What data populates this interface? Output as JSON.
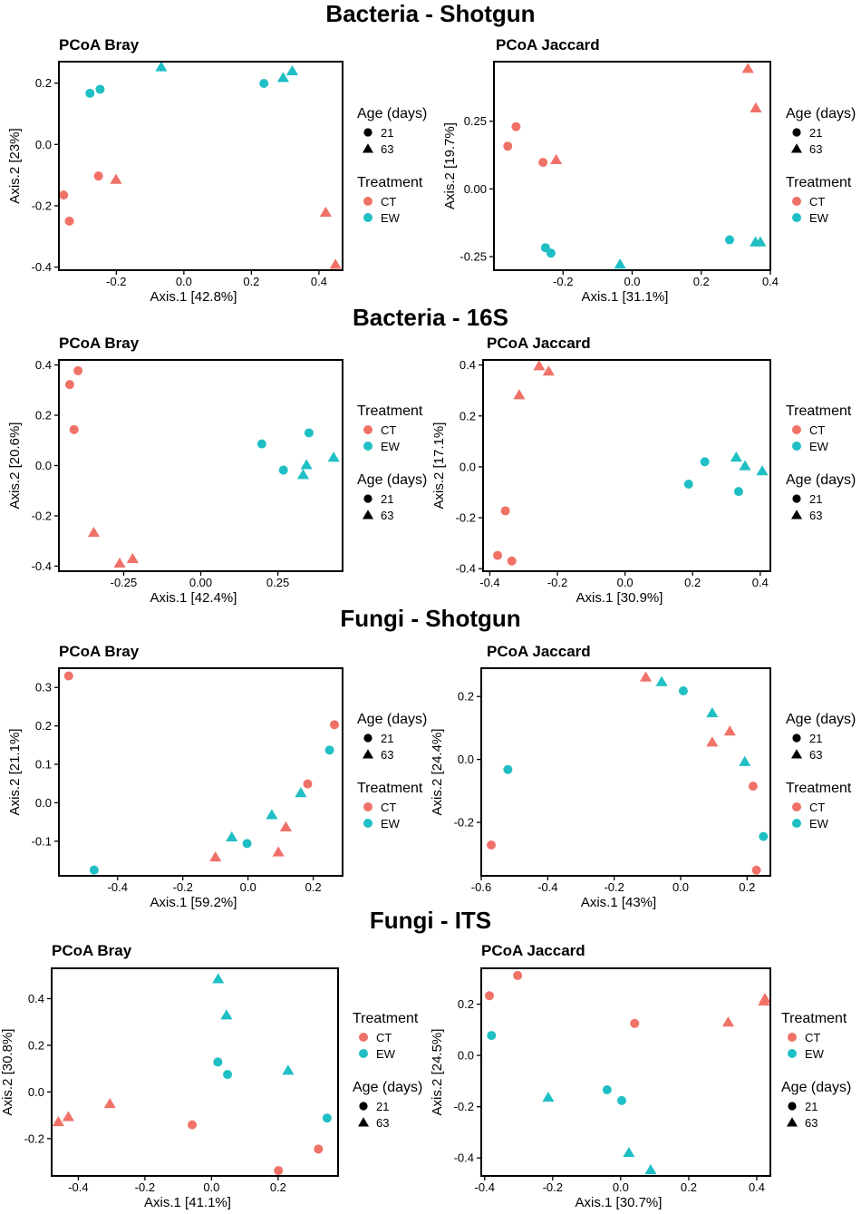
{
  "colors": {
    "CT": "#F07167",
    "EW": "#1FBFC4",
    "axis": "#000000"
  },
  "sections": [
    {
      "title": "Bacteria - Shotgun"
    },
    {
      "title": "Bacteria - 16S"
    },
    {
      "title": "Fungi - Shotgun"
    },
    {
      "title": "Fungi - ITS"
    }
  ],
  "legend_text": {
    "age_title": "Age (days)",
    "age_levels": [
      "21",
      "63"
    ],
    "treatment_title": "Treatment",
    "treatment_levels": [
      "CT",
      "EW"
    ]
  },
  "chart_data": [
    {
      "type": "scatter",
      "section": "Bacteria - Shotgun",
      "title": "PCoA Bray",
      "xlabel": "Axis.1   [42.8%]",
      "ylabel": "Axis.2   [23%]",
      "xlim": [
        -0.37,
        0.47
      ],
      "ylim": [
        -0.41,
        0.27
      ],
      "xticks": [
        -0.2,
        0.0,
        0.2,
        0.4
      ],
      "xtick_labels": [
        "-0.2",
        "0.0",
        "0.2",
        "0.4"
      ],
      "yticks": [
        -0.4,
        -0.2,
        0.0,
        0.2
      ],
      "ytick_labels": [
        "-0.4",
        "-0.2",
        "0.0",
        "0.2"
      ],
      "legend_order": [
        "age",
        "treatment"
      ],
      "points": [
        {
          "x": -0.067,
          "y": 0.253,
          "treatment": "EW",
          "age": "63"
        },
        {
          "x": -0.248,
          "y": 0.18,
          "treatment": "EW",
          "age": "21"
        },
        {
          "x": -0.278,
          "y": 0.167,
          "treatment": "EW",
          "age": "21"
        },
        {
          "x": 0.237,
          "y": 0.199,
          "treatment": "EW",
          "age": "21"
        },
        {
          "x": 0.294,
          "y": 0.218,
          "treatment": "EW",
          "age": "63"
        },
        {
          "x": 0.321,
          "y": 0.24,
          "treatment": "EW",
          "age": "63"
        },
        {
          "x": -0.253,
          "y": -0.103,
          "treatment": "CT",
          "age": "21"
        },
        {
          "x": -0.201,
          "y": -0.114,
          "treatment": "CT",
          "age": "63"
        },
        {
          "x": -0.356,
          "y": -0.165,
          "treatment": "CT",
          "age": "21"
        },
        {
          "x": -0.339,
          "y": -0.25,
          "treatment": "CT",
          "age": "21"
        },
        {
          "x": 0.42,
          "y": -0.221,
          "treatment": "CT",
          "age": "63"
        },
        {
          "x": 0.449,
          "y": -0.391,
          "treatment": "CT",
          "age": "63"
        }
      ]
    },
    {
      "type": "scatter",
      "section": "Bacteria - Shotgun",
      "title": "PCoA Jaccard",
      "xlabel": "Axis.1   [31.1%]",
      "ylabel": "Axis.2   [19.7%]",
      "xlim": [
        -0.4,
        0.4
      ],
      "ylim": [
        -0.3,
        0.47
      ],
      "xticks": [
        -0.2,
        0.0,
        0.2,
        0.4
      ],
      "xtick_labels": [
        "-0.2",
        "0.0",
        "0.2",
        "0.4"
      ],
      "yticks": [
        -0.25,
        0.0,
        0.25
      ],
      "ytick_labels": [
        "-0.25",
        "0.00",
        "0.25"
      ],
      "legend_order": [
        "age",
        "treatment"
      ],
      "points": [
        {
          "x": 0.335,
          "y": 0.445,
          "treatment": "CT",
          "age": "63"
        },
        {
          "x": 0.358,
          "y": 0.299,
          "treatment": "CT",
          "age": "63"
        },
        {
          "x": -0.336,
          "y": 0.23,
          "treatment": "CT",
          "age": "21"
        },
        {
          "x": -0.36,
          "y": 0.158,
          "treatment": "CT",
          "age": "21"
        },
        {
          "x": -0.258,
          "y": 0.098,
          "treatment": "CT",
          "age": "21"
        },
        {
          "x": -0.22,
          "y": 0.108,
          "treatment": "CT",
          "age": "63"
        },
        {
          "x": -0.251,
          "y": -0.217,
          "treatment": "EW",
          "age": "21"
        },
        {
          "x": -0.235,
          "y": -0.237,
          "treatment": "EW",
          "age": "21"
        },
        {
          "x": -0.035,
          "y": -0.278,
          "treatment": "EW",
          "age": "63"
        },
        {
          "x": 0.282,
          "y": -0.188,
          "treatment": "EW",
          "age": "21"
        },
        {
          "x": 0.357,
          "y": -0.196,
          "treatment": "EW",
          "age": "63"
        },
        {
          "x": 0.371,
          "y": -0.196,
          "treatment": "EW",
          "age": "63"
        }
      ]
    },
    {
      "type": "scatter",
      "section": "Bacteria - 16S",
      "title": "PCoA Bray",
      "xlabel": "Axis.1   [42.4%]",
      "ylabel": "Axis.2   [20.6%]",
      "xlim": [
        -0.46,
        0.46
      ],
      "ylim": [
        -0.42,
        0.42
      ],
      "xticks": [
        -0.25,
        0.0,
        0.25
      ],
      "xtick_labels": [
        "-0.25",
        "0.00",
        "0.25"
      ],
      "yticks": [
        -0.4,
        -0.2,
        0.0,
        0.2,
        0.4
      ],
      "ytick_labels": [
        "-0.4",
        "-0.2",
        "0.0",
        "0.2",
        "0.4"
      ],
      "legend_order": [
        "treatment",
        "age"
      ],
      "points": [
        {
          "x": -0.398,
          "y": 0.377,
          "treatment": "CT",
          "age": "21"
        },
        {
          "x": -0.425,
          "y": 0.322,
          "treatment": "CT",
          "age": "21"
        },
        {
          "x": -0.411,
          "y": 0.143,
          "treatment": "CT",
          "age": "21"
        },
        {
          "x": -0.347,
          "y": -0.266,
          "treatment": "CT",
          "age": "63"
        },
        {
          "x": -0.263,
          "y": -0.388,
          "treatment": "CT",
          "age": "63"
        },
        {
          "x": -0.221,
          "y": -0.37,
          "treatment": "CT",
          "age": "63"
        },
        {
          "x": 0.198,
          "y": 0.086,
          "treatment": "EW",
          "age": "21"
        },
        {
          "x": 0.268,
          "y": -0.018,
          "treatment": "EW",
          "age": "21"
        },
        {
          "x": 0.351,
          "y": 0.13,
          "treatment": "EW",
          "age": "21"
        },
        {
          "x": 0.343,
          "y": 0.003,
          "treatment": "EW",
          "age": "63"
        },
        {
          "x": 0.332,
          "y": -0.036,
          "treatment": "EW",
          "age": "63"
        },
        {
          "x": 0.431,
          "y": 0.033,
          "treatment": "EW",
          "age": "63"
        }
      ]
    },
    {
      "type": "scatter",
      "section": "Bacteria - 16S",
      "title": "PCoA Jaccard",
      "xlabel": "Axis.1   [30.9%]",
      "ylabel": "Axis.2   [17.1%]",
      "xlim": [
        -0.42,
        0.43
      ],
      "ylim": [
        -0.41,
        0.42
      ],
      "xticks": [
        -0.4,
        -0.2,
        0.0,
        0.2,
        0.4
      ],
      "xtick_labels": [
        "-0.4",
        "-0.2",
        "0.0",
        "0.2",
        "0.4"
      ],
      "yticks": [
        -0.4,
        -0.2,
        0.0,
        0.2,
        0.4
      ],
      "ytick_labels": [
        "-0.4",
        "-0.2",
        "0.0",
        "0.2",
        "0.4"
      ],
      "legend_order": [
        "treatment",
        "age"
      ],
      "points": [
        {
          "x": -0.254,
          "y": 0.397,
          "treatment": "CT",
          "age": "63"
        },
        {
          "x": -0.226,
          "y": 0.376,
          "treatment": "CT",
          "age": "63"
        },
        {
          "x": -0.313,
          "y": 0.283,
          "treatment": "CT",
          "age": "63"
        },
        {
          "x": -0.354,
          "y": -0.173,
          "treatment": "CT",
          "age": "21"
        },
        {
          "x": -0.377,
          "y": -0.348,
          "treatment": "CT",
          "age": "21"
        },
        {
          "x": -0.335,
          "y": -0.37,
          "treatment": "CT",
          "age": "21"
        },
        {
          "x": 0.236,
          "y": 0.02,
          "treatment": "EW",
          "age": "21"
        },
        {
          "x": 0.188,
          "y": -0.068,
          "treatment": "EW",
          "age": "21"
        },
        {
          "x": 0.336,
          "y": -0.097,
          "treatment": "EW",
          "age": "21"
        },
        {
          "x": 0.329,
          "y": 0.038,
          "treatment": "EW",
          "age": "63"
        },
        {
          "x": 0.355,
          "y": 0.004,
          "treatment": "EW",
          "age": "63"
        },
        {
          "x": 0.406,
          "y": -0.016,
          "treatment": "EW",
          "age": "63"
        }
      ]
    },
    {
      "type": "scatter",
      "section": "Fungi - Shotgun",
      "title": "PCoA Bray",
      "xlabel": "Axis.1   [59.2%]",
      "ylabel": "Axis.2   [21.1%]",
      "xlim": [
        -0.58,
        0.29
      ],
      "ylim": [
        -0.19,
        0.35
      ],
      "xticks": [
        -0.4,
        -0.2,
        0.0,
        0.2
      ],
      "xtick_labels": [
        "-0.4",
        "-0.2",
        "0.0",
        "0.2"
      ],
      "yticks": [
        -0.1,
        0.0,
        0.1,
        0.2,
        0.3
      ],
      "ytick_labels": [
        "-0.1",
        "0.0",
        "0.1",
        "0.2",
        "0.3"
      ],
      "legend_order": [
        "age",
        "treatment"
      ],
      "points": [
        {
          "x": -0.55,
          "y": 0.33,
          "treatment": "CT",
          "age": "21"
        },
        {
          "x": 0.265,
          "y": 0.203,
          "treatment": "CT",
          "age": "21"
        },
        {
          "x": 0.183,
          "y": 0.049,
          "treatment": "CT",
          "age": "21"
        },
        {
          "x": 0.116,
          "y": -0.063,
          "treatment": "CT",
          "age": "63"
        },
        {
          "x": 0.093,
          "y": -0.128,
          "treatment": "CT",
          "age": "63"
        },
        {
          "x": -0.1,
          "y": -0.141,
          "treatment": "CT",
          "age": "63"
        },
        {
          "x": -0.472,
          "y": -0.175,
          "treatment": "EW",
          "age": "21"
        },
        {
          "x": 0.25,
          "y": 0.137,
          "treatment": "EW",
          "age": "21"
        },
        {
          "x": -0.003,
          "y": -0.106,
          "treatment": "EW",
          "age": "21"
        },
        {
          "x": 0.162,
          "y": 0.026,
          "treatment": "EW",
          "age": "63"
        },
        {
          "x": 0.073,
          "y": -0.031,
          "treatment": "EW",
          "age": "63"
        },
        {
          "x": -0.05,
          "y": -0.089,
          "treatment": "EW",
          "age": "63"
        }
      ]
    },
    {
      "type": "scatter",
      "section": "Fungi - Shotgun",
      "title": "PCoA Jaccard",
      "xlabel": "Axis.1   [43%]",
      "ylabel": "Axis.2   [24.4%]",
      "xlim": [
        -0.6,
        0.27
      ],
      "ylim": [
        -0.37,
        0.29
      ],
      "xticks": [
        -0.6,
        -0.4,
        -0.2,
        0.0,
        0.2
      ],
      "xtick_labels": [
        "-0.6",
        "-0.4",
        "-0.2",
        "0.0",
        "0.2"
      ],
      "yticks": [
        -0.2,
        0.0,
        0.2
      ],
      "ytick_labels": [
        "-0.2",
        "0.0",
        "0.2"
      ],
      "legend_order": [
        "age",
        "treatment"
      ],
      "points": [
        {
          "x": -0.105,
          "y": 0.262,
          "treatment": "CT",
          "age": "63"
        },
        {
          "x": 0.148,
          "y": 0.09,
          "treatment": "CT",
          "age": "63"
        },
        {
          "x": 0.095,
          "y": 0.055,
          "treatment": "CT",
          "age": "63"
        },
        {
          "x": 0.218,
          "y": -0.085,
          "treatment": "CT",
          "age": "21"
        },
        {
          "x": -0.57,
          "y": -0.272,
          "treatment": "CT",
          "age": "21"
        },
        {
          "x": 0.228,
          "y": -0.352,
          "treatment": "CT",
          "age": "21"
        },
        {
          "x": -0.057,
          "y": 0.247,
          "treatment": "EW",
          "age": "63"
        },
        {
          "x": 0.008,
          "y": 0.218,
          "treatment": "EW",
          "age": "21"
        },
        {
          "x": 0.095,
          "y": 0.148,
          "treatment": "EW",
          "age": "63"
        },
        {
          "x": 0.193,
          "y": -0.007,
          "treatment": "EW",
          "age": "63"
        },
        {
          "x": -0.52,
          "y": -0.032,
          "treatment": "EW",
          "age": "21"
        },
        {
          "x": 0.249,
          "y": -0.245,
          "treatment": "EW",
          "age": "21"
        }
      ]
    },
    {
      "type": "scatter",
      "section": "Fungi - ITS",
      "title": "PCoA Bray",
      "xlabel": "Axis.1   [41.1%]",
      "ylabel": "Axis.2   [30.8%]",
      "xlim": [
        -0.48,
        0.38
      ],
      "ylim": [
        -0.36,
        0.53
      ],
      "xticks": [
        -0.4,
        -0.2,
        0.0,
        0.2
      ],
      "xtick_labels": [
        "-0.4",
        "-0.2",
        "0.0",
        "0.2"
      ],
      "yticks": [
        -0.2,
        0.0,
        0.2,
        0.4
      ],
      "ytick_labels": [
        "-0.2",
        "0.0",
        "0.2",
        "0.4"
      ],
      "legend_order": [
        "treatment",
        "age"
      ],
      "points": [
        {
          "x": 0.02,
          "y": 0.485,
          "treatment": "EW",
          "age": "63"
        },
        {
          "x": 0.045,
          "y": 0.33,
          "treatment": "EW",
          "age": "63"
        },
        {
          "x": 0.019,
          "y": 0.128,
          "treatment": "EW",
          "age": "21"
        },
        {
          "x": 0.048,
          "y": 0.075,
          "treatment": "EW",
          "age": "21"
        },
        {
          "x": 0.23,
          "y": 0.093,
          "treatment": "EW",
          "age": "63"
        },
        {
          "x": 0.347,
          "y": -0.112,
          "treatment": "EW",
          "age": "21"
        },
        {
          "x": -0.46,
          "y": -0.128,
          "treatment": "CT",
          "age": "63"
        },
        {
          "x": -0.43,
          "y": -0.106,
          "treatment": "CT",
          "age": "63"
        },
        {
          "x": -0.305,
          "y": -0.05,
          "treatment": "CT",
          "age": "63"
        },
        {
          "x": -0.058,
          "y": -0.141,
          "treatment": "CT",
          "age": "21"
        },
        {
          "x": 0.321,
          "y": -0.245,
          "treatment": "CT",
          "age": "21"
        },
        {
          "x": 0.201,
          "y": -0.337,
          "treatment": "CT",
          "age": "21"
        }
      ]
    },
    {
      "type": "scatter",
      "section": "Fungi - ITS",
      "title": "PCoA Jaccard",
      "xlabel": "Axis.1   [30.7%]",
      "ylabel": "Axis.2   [24.5%]",
      "xlim": [
        -0.41,
        0.44
      ],
      "ylim": [
        -0.47,
        0.34
      ],
      "xticks": [
        -0.4,
        -0.2,
        0.0,
        0.2,
        0.4
      ],
      "xtick_labels": [
        "-0.4",
        "-0.2",
        "0.0",
        "0.2",
        "0.4"
      ],
      "yticks": [
        -0.4,
        -0.2,
        0.0,
        0.2
      ],
      "ytick_labels": [
        "-0.4",
        "-0.2",
        "0.0",
        "0.2"
      ],
      "legend_order": [
        "treatment",
        "age"
      ],
      "points": [
        {
          "x": -0.303,
          "y": 0.312,
          "treatment": "CT",
          "age": "21"
        },
        {
          "x": -0.386,
          "y": 0.233,
          "treatment": "CT",
          "age": "21"
        },
        {
          "x": 0.041,
          "y": 0.125,
          "treatment": "CT",
          "age": "21"
        },
        {
          "x": 0.316,
          "y": 0.13,
          "treatment": "CT",
          "age": "63"
        },
        {
          "x": 0.421,
          "y": 0.212,
          "treatment": "CT",
          "age": "63"
        },
        {
          "x": 0.424,
          "y": 0.222,
          "treatment": "CT",
          "age": "63"
        },
        {
          "x": -0.38,
          "y": 0.078,
          "treatment": "EW",
          "age": "21"
        },
        {
          "x": -0.04,
          "y": -0.134,
          "treatment": "EW",
          "age": "21"
        },
        {
          "x": 0.003,
          "y": -0.176,
          "treatment": "EW",
          "age": "21"
        },
        {
          "x": -0.213,
          "y": -0.163,
          "treatment": "EW",
          "age": "63"
        },
        {
          "x": 0.024,
          "y": -0.379,
          "treatment": "EW",
          "age": "63"
        },
        {
          "x": 0.088,
          "y": -0.446,
          "treatment": "EW",
          "age": "63"
        }
      ]
    }
  ]
}
